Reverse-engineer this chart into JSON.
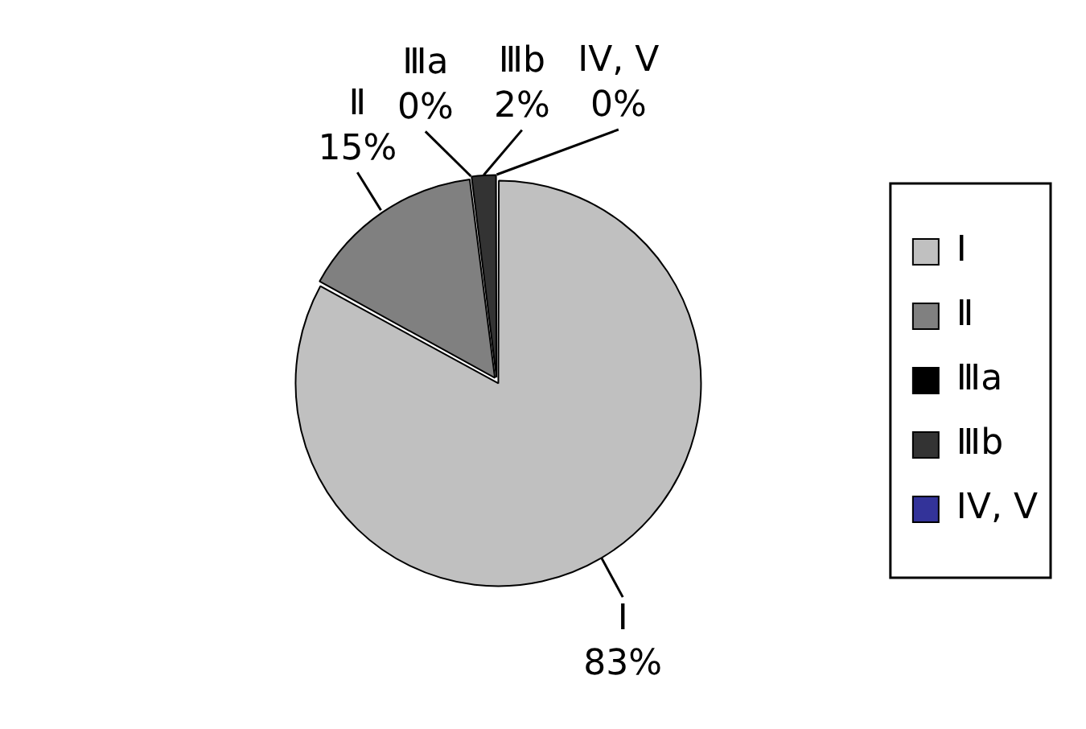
{
  "chart_data": {
    "type": "pie",
    "categories": [
      "Ⅰ",
      "Ⅱ",
      "Ⅲa",
      "Ⅲb",
      "IV, V"
    ],
    "values": [
      83,
      15,
      0,
      2,
      0
    ],
    "colors": [
      "#c0c0c0",
      "#808080",
      "#000000",
      "#333333",
      "#333399"
    ],
    "value_labels": [
      "83%",
      "15%",
      "0%",
      "2%",
      "0%"
    ],
    "data_labels": true,
    "legend": "right"
  }
}
